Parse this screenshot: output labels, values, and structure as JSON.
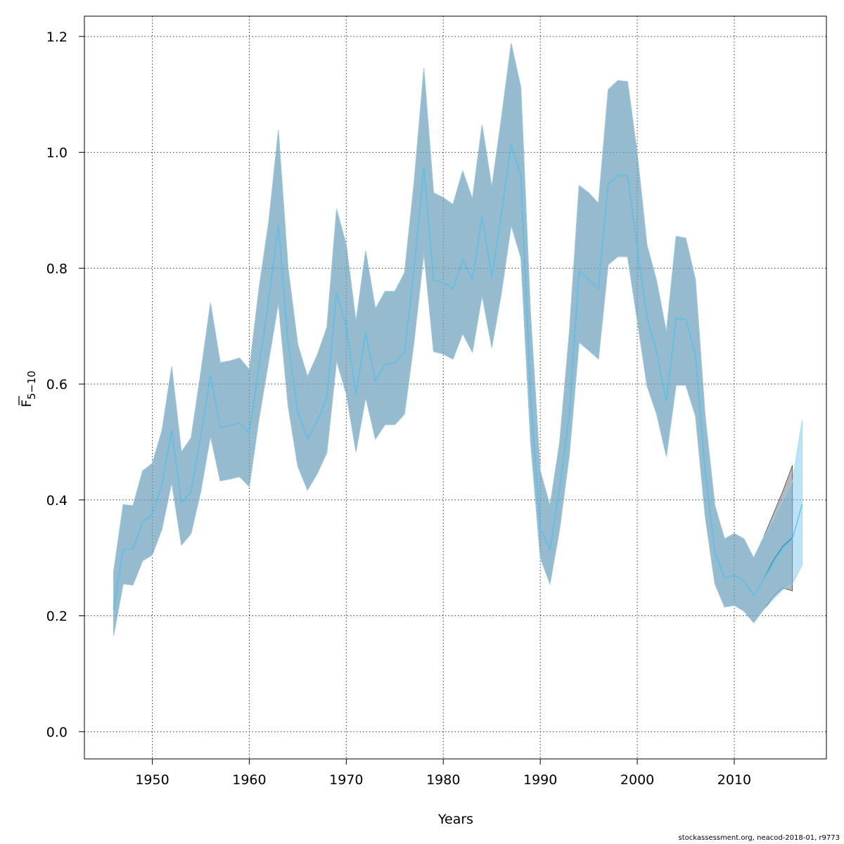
{
  "chart_data": {
    "type": "area",
    "xlabel": "Years",
    "ylabel_main": "F",
    "ylabel_sub": "5−10",
    "xlim": [
      1943,
      2019.5
    ],
    "ylim": [
      -0.047,
      1.235
    ],
    "x_ticks": [
      1950,
      1960,
      1970,
      1980,
      1990,
      2000,
      2010
    ],
    "y_ticks": [
      0.0,
      0.2,
      0.4,
      0.6,
      0.8,
      1.0,
      1.2
    ],
    "y_tick_labels": [
      "0.0",
      "0.2",
      "0.4",
      "0.6",
      "0.8",
      "1.0",
      "1.2"
    ],
    "grid": true,
    "x": [
      1946,
      1947,
      1948,
      1949,
      1950,
      1951,
      1952,
      1953,
      1954,
      1955,
      1956,
      1957,
      1958,
      1959,
      1960,
      1961,
      1962,
      1963,
      1964,
      1965,
      1966,
      1967,
      1968,
      1969,
      1970,
      1971,
      1972,
      1973,
      1974,
      1975,
      1976,
      1977,
      1978,
      1979,
      1980,
      1981,
      1982,
      1983,
      1984,
      1985,
      1986,
      1987,
      1988,
      1989,
      1990,
      1991,
      1992,
      1993,
      1994,
      1995,
      1996,
      1997,
      1998,
      1999,
      2000,
      2001,
      2002,
      2003,
      2004,
      2005,
      2006,
      2007,
      2008,
      2009,
      2010,
      2011,
      2012,
      2013,
      2014,
      2015,
      2016
    ],
    "series": [
      {
        "role": "estimate",
        "color": "#3a92b3",
        "values": [
          0.21,
          0.315,
          0.315,
          0.362,
          0.375,
          0.427,
          0.52,
          0.395,
          0.415,
          0.51,
          0.615,
          0.525,
          0.528,
          0.533,
          0.515,
          0.63,
          0.745,
          0.875,
          0.672,
          0.552,
          0.505,
          0.535,
          0.578,
          0.758,
          0.7,
          0.582,
          0.688,
          0.605,
          0.635,
          0.636,
          0.655,
          0.8,
          0.975,
          0.78,
          0.775,
          0.765,
          0.815,
          0.78,
          0.89,
          0.785,
          0.895,
          1.013,
          0.96,
          0.58,
          0.35,
          0.315,
          0.42,
          0.55,
          0.795,
          0.78,
          0.765,
          0.945,
          0.96,
          0.96,
          0.835,
          0.715,
          0.655,
          0.57,
          0.713,
          0.712,
          0.65,
          0.45,
          0.31,
          0.265,
          0.27,
          0.26,
          0.235,
          0.262,
          0.295,
          0.32,
          0.335
        ],
        "lower": [
          0.165,
          0.255,
          0.253,
          0.295,
          0.305,
          0.35,
          0.43,
          0.322,
          0.342,
          0.415,
          0.51,
          0.433,
          0.436,
          0.44,
          0.423,
          0.54,
          0.64,
          0.74,
          0.562,
          0.458,
          0.417,
          0.445,
          0.482,
          0.64,
          0.583,
          0.483,
          0.577,
          0.505,
          0.53,
          0.53,
          0.548,
          0.675,
          0.826,
          0.656,
          0.652,
          0.643,
          0.687,
          0.655,
          0.753,
          0.663,
          0.758,
          0.874,
          0.818,
          0.5,
          0.3,
          0.255,
          0.35,
          0.478,
          0.672,
          0.658,
          0.643,
          0.806,
          0.82,
          0.82,
          0.71,
          0.597,
          0.548,
          0.475,
          0.598,
          0.598,
          0.545,
          0.372,
          0.255,
          0.215,
          0.218,
          0.208,
          0.188,
          0.21,
          0.232,
          0.248,
          0.243
        ],
        "upper": [
          0.275,
          0.392,
          0.39,
          0.45,
          0.463,
          0.52,
          0.63,
          0.483,
          0.507,
          0.62,
          0.74,
          0.637,
          0.64,
          0.645,
          0.625,
          0.765,
          0.88,
          1.038,
          0.8,
          0.668,
          0.613,
          0.65,
          0.698,
          0.902,
          0.84,
          0.708,
          0.83,
          0.73,
          0.76,
          0.76,
          0.792,
          0.95,
          1.145,
          0.93,
          0.922,
          0.91,
          0.968,
          0.92,
          1.047,
          0.94,
          1.06,
          1.188,
          1.112,
          0.72,
          0.45,
          0.39,
          0.5,
          0.69,
          0.943,
          0.93,
          0.912,
          1.108,
          1.124,
          1.122,
          0.998,
          0.84,
          0.778,
          0.69,
          0.855,
          0.852,
          0.78,
          0.545,
          0.39,
          0.333,
          0.342,
          0.333,
          0.3,
          0.335,
          0.375,
          0.415,
          0.46
        ]
      },
      {
        "role": "prediction",
        "color": "#5ec3ee",
        "x": [
          1946,
          1947,
          1948,
          1949,
          1950,
          1951,
          1952,
          1953,
          1954,
          1955,
          1956,
          1957,
          1958,
          1959,
          1960,
          1961,
          1962,
          1963,
          1964,
          1965,
          1966,
          1967,
          1968,
          1969,
          1970,
          1971,
          1972,
          1973,
          1974,
          1975,
          1976,
          1977,
          1978,
          1979,
          1980,
          1981,
          1982,
          1983,
          1984,
          1985,
          1986,
          1987,
          1988,
          1989,
          1990,
          1991,
          1992,
          1993,
          1994,
          1995,
          1996,
          1997,
          1998,
          1999,
          2000,
          2001,
          2002,
          2003,
          2004,
          2005,
          2006,
          2007,
          2008,
          2009,
          2010,
          2011,
          2012,
          2013,
          2014,
          2015,
          2016,
          2017
        ],
        "values": [
          0.21,
          0.315,
          0.315,
          0.362,
          0.375,
          0.427,
          0.52,
          0.395,
          0.415,
          0.51,
          0.615,
          0.525,
          0.528,
          0.533,
          0.515,
          0.63,
          0.745,
          0.875,
          0.672,
          0.552,
          0.505,
          0.535,
          0.578,
          0.758,
          0.7,
          0.582,
          0.688,
          0.605,
          0.635,
          0.636,
          0.655,
          0.8,
          0.975,
          0.78,
          0.775,
          0.765,
          0.815,
          0.78,
          0.89,
          0.785,
          0.895,
          1.013,
          0.96,
          0.58,
          0.35,
          0.315,
          0.42,
          0.55,
          0.795,
          0.78,
          0.765,
          0.945,
          0.96,
          0.96,
          0.835,
          0.715,
          0.655,
          0.57,
          0.713,
          0.712,
          0.65,
          0.45,
          0.31,
          0.265,
          0.27,
          0.26,
          0.235,
          0.262,
          0.29,
          0.315,
          0.333,
          0.393
        ],
        "lower": [
          0.165,
          0.255,
          0.253,
          0.295,
          0.305,
          0.35,
          0.43,
          0.322,
          0.342,
          0.415,
          0.51,
          0.433,
          0.436,
          0.44,
          0.423,
          0.54,
          0.64,
          0.74,
          0.562,
          0.458,
          0.417,
          0.445,
          0.482,
          0.64,
          0.583,
          0.483,
          0.577,
          0.505,
          0.53,
          0.53,
          0.548,
          0.675,
          0.826,
          0.656,
          0.652,
          0.643,
          0.687,
          0.655,
          0.753,
          0.663,
          0.758,
          0.874,
          0.818,
          0.5,
          0.3,
          0.255,
          0.35,
          0.478,
          0.672,
          0.658,
          0.643,
          0.806,
          0.82,
          0.82,
          0.71,
          0.597,
          0.548,
          0.475,
          0.598,
          0.598,
          0.545,
          0.372,
          0.255,
          0.215,
          0.218,
          0.208,
          0.188,
          0.21,
          0.228,
          0.245,
          0.255,
          0.288
        ],
        "upper": [
          0.275,
          0.392,
          0.39,
          0.45,
          0.463,
          0.52,
          0.63,
          0.483,
          0.507,
          0.62,
          0.74,
          0.637,
          0.64,
          0.645,
          0.625,
          0.765,
          0.88,
          1.038,
          0.8,
          0.668,
          0.613,
          0.65,
          0.698,
          0.902,
          0.84,
          0.708,
          0.83,
          0.73,
          0.76,
          0.76,
          0.792,
          0.95,
          1.145,
          0.93,
          0.922,
          0.91,
          0.968,
          0.92,
          1.047,
          0.94,
          1.06,
          1.188,
          1.112,
          0.72,
          0.45,
          0.39,
          0.5,
          0.69,
          0.943,
          0.93,
          0.912,
          1.108,
          1.124,
          1.122,
          0.998,
          0.84,
          0.778,
          0.69,
          0.855,
          0.852,
          0.78,
          0.545,
          0.39,
          0.333,
          0.342,
          0.333,
          0.3,
          0.335,
          0.365,
          0.4,
          0.432,
          0.538
        ]
      }
    ]
  },
  "footer": {
    "attribution": "stockassessment.org, neacod-2018-01, r9773"
  }
}
